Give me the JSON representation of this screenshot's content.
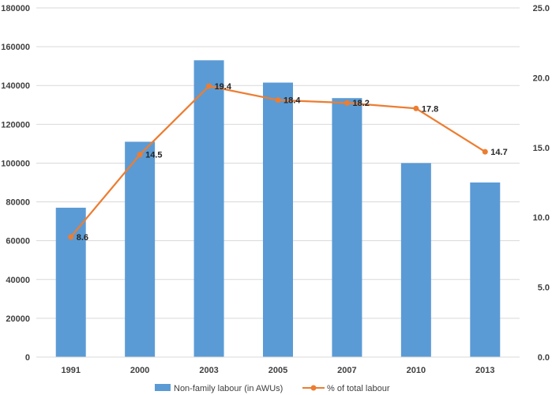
{
  "chart_data": {
    "type": "bar",
    "categories": [
      "1991",
      "2000",
      "2003",
      "2005",
      "2007",
      "2010",
      "2013"
    ],
    "series": [
      {
        "name": "Non-family labour (in AWUs)",
        "type": "bar",
        "axis": "left",
        "color": "#5b9bd5",
        "values": [
          77000,
          111000,
          153000,
          141500,
          133500,
          100000,
          90000
        ]
      },
      {
        "name": "% of total labour",
        "type": "line",
        "axis": "right",
        "color": "#ed7d31",
        "values": [
          8.6,
          14.5,
          19.4,
          18.4,
          18.2,
          17.8,
          14.7
        ],
        "labels": [
          "8.6",
          "14.5",
          "19.4",
          "18.4",
          "18.2",
          "17.8",
          "14.7"
        ]
      }
    ],
    "y_left": {
      "range": [
        0,
        180000
      ],
      "ticks": [
        "0",
        "20000",
        "40000",
        "60000",
        "80000",
        "100000",
        "120000",
        "140000",
        "160000",
        "180000"
      ]
    },
    "y_right": {
      "range": [
        0,
        25
      ],
      "ticks": [
        "0.0",
        "5.0",
        "10.0",
        "15.0",
        "20.0",
        "25.0"
      ]
    },
    "grid": true,
    "legend": "bottom",
    "title": "",
    "xlabel": "",
    "ylabel": ""
  }
}
